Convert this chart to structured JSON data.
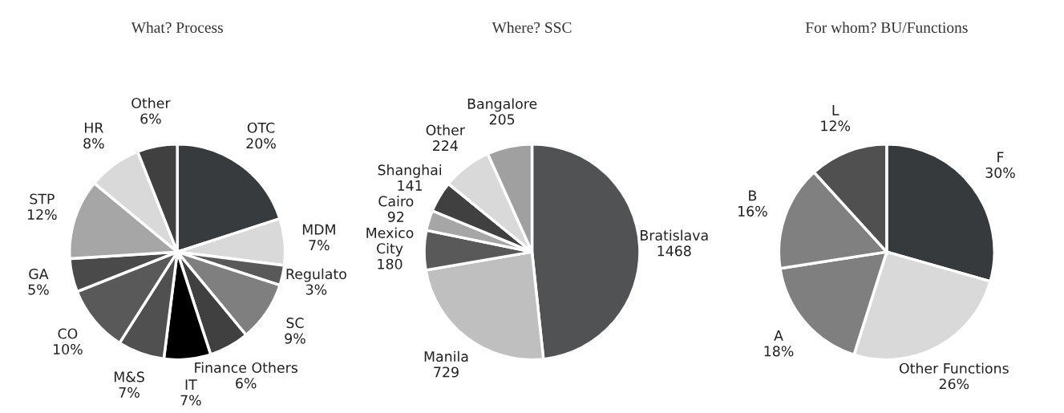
{
  "chart_data": [
    {
      "type": "pie",
      "title": "What? Process",
      "categories": [
        "OTC",
        "MDM",
        "Regulato",
        "SC",
        "Finance Others",
        "IT",
        "M&S",
        "CO",
        "GA",
        "STP",
        "HR",
        "Other"
      ],
      "values": [
        20,
        7,
        3,
        9,
        6,
        7,
        7,
        10,
        5,
        12,
        8,
        6
      ],
      "value_labels": [
        "20%",
        "7%",
        "3%",
        "9%",
        "6%",
        "7%",
        "7%",
        "10%",
        "5%",
        "12%",
        "8%",
        "6%"
      ],
      "colors": [
        "#383b3e",
        "#d9d9d9",
        "#595959",
        "#7f7f7f",
        "#404040",
        "#000000",
        "#505050",
        "#595959",
        "#4a4a4a",
        "#a6a6a6",
        "#d9d9d9",
        "#404040"
      ]
    },
    {
      "type": "pie",
      "title": "Where? SSC",
      "categories": [
        "Bratislava",
        "Manila",
        "Mexico\nCity",
        "Cairo",
        "Shanghai",
        "Other",
        "Bangalore"
      ],
      "values": [
        1468,
        729,
        180,
        92,
        141,
        224,
        205
      ],
      "value_labels": [
        "1468",
        "729",
        "180",
        "92",
        "141",
        "224",
        "205"
      ],
      "colors": [
        "#505254",
        "#bfbfbf",
        "#595959",
        "#a6a6a6",
        "#404040",
        "#d9d9d9",
        "#a0a0a0"
      ]
    },
    {
      "type": "pie",
      "title": "For whom? BU/Functions",
      "categories": [
        "F",
        "Other Functions",
        "A",
        "B",
        "L"
      ],
      "values": [
        30,
        26,
        18,
        16,
        12
      ],
      "value_labels": [
        "30%",
        "26%",
        "18%",
        "16%",
        "12%"
      ],
      "colors": [
        "#363a3d",
        "#d9d9d9",
        "#7f7f7f",
        "#808080",
        "#505050"
      ]
    }
  ]
}
